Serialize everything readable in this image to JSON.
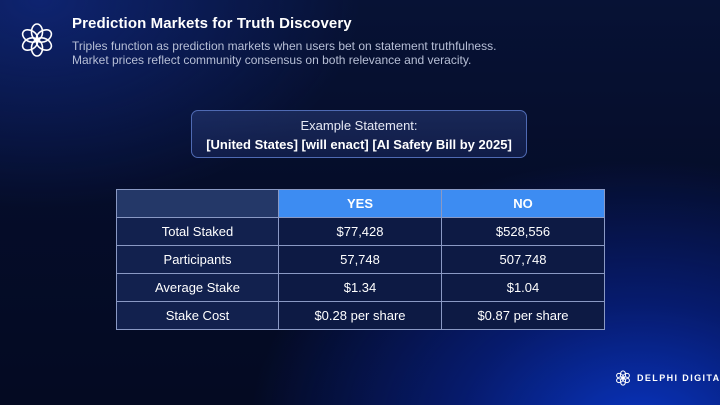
{
  "header": {
    "title": "Prediction Markets for Truth Discovery",
    "subtitle_line1": "Triples function as prediction markets when users bet on statement truthfulness.",
    "subtitle_line2": "Market prices reflect community consensus on both relevance and veracity.",
    "logo_icon": "flower-logo-icon"
  },
  "statement": {
    "label": "Example Statement:",
    "text": "[United States] [will enact] [AI Safety Bill by 2025]"
  },
  "table": {
    "columns": [
      "",
      "YES",
      "NO"
    ],
    "rows": [
      {
        "label": "Total Staked",
        "yes": "$77,428",
        "no": "$528,556"
      },
      {
        "label": "Participants",
        "yes": "57,748",
        "no": "507,748"
      },
      {
        "label": "Average Stake",
        "yes": "$1.34",
        "no": "$1.04"
      },
      {
        "label": "Stake Cost",
        "yes": "$0.28 per share",
        "no": "$0.87 per share"
      }
    ]
  },
  "footer": {
    "brand": "DELPHI DIGITAL",
    "brand_icon": "delphi-logo-icon"
  },
  "colors": {
    "header_accent": "#3d8cf2",
    "background": "#050d2a",
    "cell_background": "#0d1a44",
    "border": "#8a99c4"
  }
}
